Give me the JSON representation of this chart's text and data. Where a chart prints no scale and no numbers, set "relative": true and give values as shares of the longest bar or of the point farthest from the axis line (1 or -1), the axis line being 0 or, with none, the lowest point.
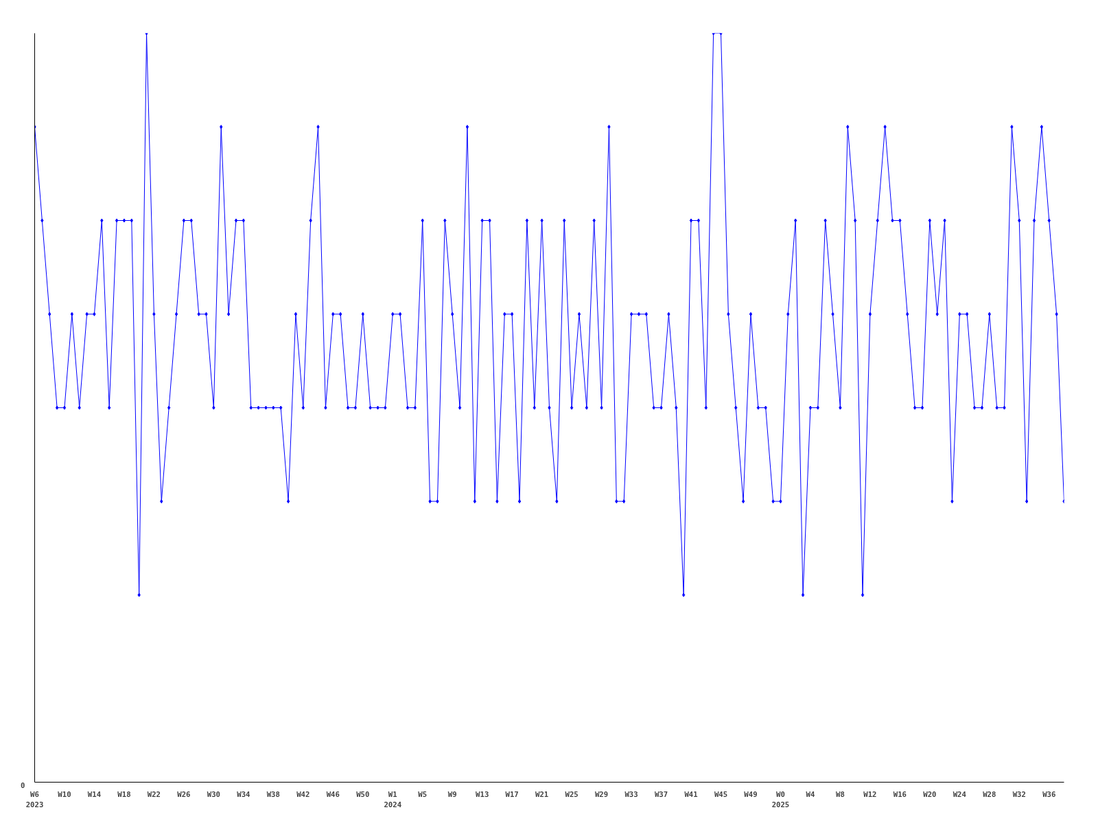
{
  "chart_data": {
    "type": "line",
    "relative": true,
    "marker": "diamond",
    "grid": false,
    "annotations": [
      "0"
    ],
    "categories": [
      "W6\n2023",
      null,
      null,
      null,
      "W10",
      null,
      null,
      null,
      "W14",
      null,
      null,
      null,
      "W18",
      null,
      null,
      null,
      "W22",
      null,
      null,
      null,
      "W26",
      null,
      null,
      null,
      "W30",
      null,
      null,
      null,
      "W34",
      null,
      null,
      null,
      "W38",
      null,
      null,
      null,
      "W42",
      null,
      null,
      null,
      "W46",
      null,
      null,
      null,
      "W50",
      null,
      null,
      null,
      "W1\n2024",
      null,
      null,
      null,
      "W5",
      null,
      null,
      null,
      "W9",
      null,
      null,
      null,
      "W13",
      null,
      null,
      null,
      "W17",
      null,
      null,
      null,
      "W21",
      null,
      null,
      null,
      "W25",
      null,
      null,
      null,
      "W29",
      null,
      null,
      null,
      "W33",
      null,
      null,
      null,
      "W37",
      null,
      null,
      null,
      "W41",
      null,
      null,
      null,
      "W45",
      null,
      null,
      null,
      "W49",
      null,
      null,
      null,
      "W0\n2025",
      null,
      null,
      null,
      "W4",
      null,
      null,
      null,
      "W8",
      null,
      null,
      null,
      "W12",
      null,
      null,
      null,
      "W16",
      null,
      null,
      null,
      "W20",
      null,
      null,
      null,
      "W24",
      null,
      null,
      null,
      "W28",
      null,
      null,
      null,
      "W32",
      null,
      null,
      null,
      "W36",
      null,
      null
    ],
    "series": [
      {
        "color": "#0000ff",
        "values": [
          0.875,
          0.75,
          0.625,
          0.5,
          0.5,
          0.625,
          0.5,
          0.625,
          0.625,
          0.75,
          0.5,
          0.75,
          0.75,
          0.75,
          0.25,
          1,
          0.625,
          0.375,
          0.5,
          0.625,
          0.75,
          0.75,
          0.625,
          0.625,
          0.5,
          0.875,
          0.625,
          0.75,
          0.75,
          0.5,
          0.5,
          0.5,
          0.5,
          0.5,
          0.375,
          0.625,
          0.5,
          0.75,
          0.875,
          0.5,
          0.625,
          0.625,
          0.5,
          0.5,
          0.625,
          0.5,
          0.5,
          0.5,
          0.625,
          0.625,
          0.5,
          0.5,
          0.75,
          0.375,
          0.375,
          0.75,
          0.625,
          0.5,
          0.875,
          0.375,
          0.75,
          0.75,
          0.375,
          0.625,
          0.625,
          0.375,
          0.75,
          0.5,
          0.75,
          0.5,
          0.375,
          0.75,
          0.5,
          0.625,
          0.5,
          0.75,
          0.5,
          0.875,
          0.375,
          0.375,
          0.625,
          0.625,
          0.625,
          0.5,
          0.5,
          0.625,
          0.5,
          0.25,
          0.75,
          0.75,
          0.5,
          1,
          1,
          0.625,
          0.5,
          0.375,
          0.625,
          0.5,
          0.5,
          0.375,
          0.375,
          0.625,
          0.75,
          0.25,
          0.5,
          0.5,
          0.75,
          0.625,
          0.5,
          0.875,
          0.75,
          0.25,
          0.625,
          0.75,
          0.875,
          0.75,
          0.75,
          0.625,
          0.5,
          0.5,
          0.75,
          0.625,
          0.75,
          0.375,
          0.625,
          0.625,
          0.5,
          0.5,
          0.625,
          0.5,
          0.5,
          0.875,
          0.75,
          0.375,
          0.75,
          0.875,
          0.75,
          0.625,
          0.375
        ]
      }
    ]
  }
}
